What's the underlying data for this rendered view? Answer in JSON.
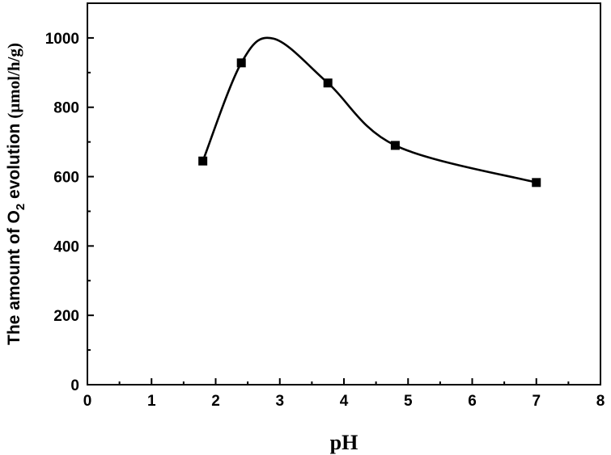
{
  "chart_data": {
    "type": "line",
    "title": "",
    "xlabel": "pH",
    "ylabel": {
      "prefix": "The amount of O",
      "subscript": "2",
      "suffix": " evolution ",
      "unit": "(µmol/h/g)"
    },
    "xlim": [
      0,
      8
    ],
    "ylim": [
      0,
      1100
    ],
    "x_ticks": [
      0,
      1,
      2,
      3,
      4,
      5,
      6,
      7,
      8
    ],
    "y_ticks": [
      0,
      200,
      400,
      600,
      800,
      1000
    ],
    "grid": false,
    "legend": "none",
    "series": [
      {
        "marker": "square",
        "x": [
          1.8,
          2.4,
          3.75,
          4.8,
          7.0
        ],
        "y": [
          645,
          928,
          870,
          690,
          583
        ]
      }
    ],
    "fit_curve": {
      "x": [
        1.8,
        2.4,
        2.9,
        3.75,
        4.8,
        7.0
      ],
      "y": [
        645,
        928,
        998,
        870,
        690,
        583
      ]
    },
    "colors": {
      "line": "#000000",
      "marker": "#000000"
    }
  }
}
